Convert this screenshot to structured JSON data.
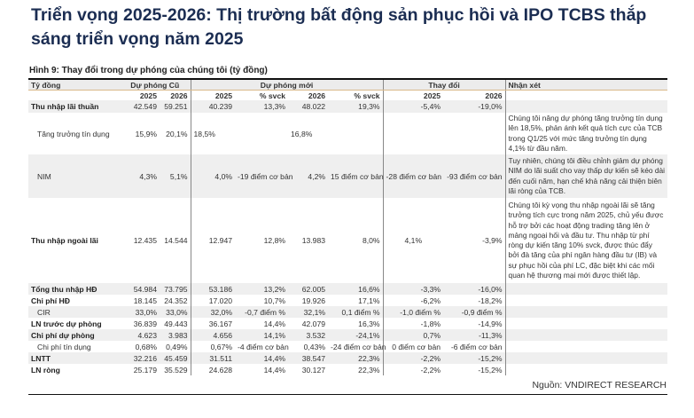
{
  "title": "Triển vọng 2025-2026: Thị trường bất động sản phục hồi và IPO TCBS thắp sáng triển vọng năm 2025",
  "caption": "Hình 9: Thay đổi trong dự phóng của chúng tôi (tỷ đồng)",
  "header": {
    "unit": "Tỷ đồng",
    "old": "Dự phóng Cũ",
    "new": "Dự phóng mới",
    "change": "Thay đổi",
    "comment": "Nhận xét",
    "sub": [
      "2025",
      "2026",
      "2025",
      "% svck",
      "2026",
      "% svck",
      "2025",
      "2026"
    ]
  },
  "rows": [
    {
      "label": "Thu nhập lãi thuần",
      "bold": true,
      "shaded": true,
      "cells": [
        "42.549",
        "59.251",
        "40.239",
        "13,3%",
        "48.022",
        "19,3%",
        "-5,4%",
        "-19,0%"
      ],
      "comment": ""
    },
    {
      "label": "Tăng trưởng tín dụng",
      "bold": false,
      "shaded": false,
      "cells": [
        "15,9%",
        "20,1%",
        "18,5%",
        "",
        "16,8%",
        "",
        "",
        ""
      ],
      "comment": "Chúng tôi nâng dự phóng tăng trưởng tín dụng lên 18,5%, phản ánh kết quả tích cực của TCB trong Q1/25 với mức tăng trưởng tín dụng 4,1% từ đầu năm."
    },
    {
      "label": "NIM",
      "bold": false,
      "shaded": true,
      "cells": [
        "4,3%",
        "5,1%",
        "4,0%",
        "-19 điểm cơ bản",
        "4,2%",
        "15 điểm cơ bản",
        "-28 điểm cơ bản",
        "-93 điểm cơ bản"
      ],
      "comment": "Tuy nhiên, chúng tôi điều chỉnh giảm dự phóng NIM do lãi suất cho vay thấp dự kiến sẽ kéo dài đến cuối năm, hạn chế khả năng cải thiện biên lãi ròng của TCB."
    },
    {
      "label": "Thu nhập ngoài lãi",
      "bold": true,
      "shaded": false,
      "cells": [
        "12.435",
        "14.544",
        "12.947",
        "12,8%",
        "13.983",
        "8,0%",
        "4,1%",
        "-3,9%"
      ],
      "comment": "Chúng tôi kỳ vọng thu nhập ngoài lãi sẽ tăng trưởng tích cực trong năm 2025, chủ yếu được hỗ trợ bởi các hoạt động trading tăng lên ở mảng ngoại hối và đầu tư. Thu nhập từ phí ròng dự kiến tăng 10% svck, được thúc đẩy bởi đà tăng của phí ngân hàng đầu tư (IB) và sự phục hồi của phí LC, đặc biệt khi các mối quan hệ thương mại mới được thiết lập."
    },
    {
      "label": "Tổng thu nhập HĐ",
      "bold": true,
      "shaded": true,
      "cells": [
        "54.984",
        "73.795",
        "53.186",
        "13,2%",
        "62.005",
        "16,6%",
        "-3,3%",
        "-16,0%"
      ],
      "comment": ""
    },
    {
      "label": "Chi phí HĐ",
      "bold": true,
      "shaded": false,
      "cells": [
        "18.145",
        "24.352",
        "17.020",
        "10,7%",
        "19.926",
        "17,1%",
        "-6,2%",
        "-18,2%"
      ],
      "comment": ""
    },
    {
      "label": "CIR",
      "bold": false,
      "shaded": true,
      "cells": [
        "33,0%",
        "33,0%",
        "32,0%",
        "-0,7 điểm %",
        "32,1%",
        "0,1 điểm %",
        "-1,0 điểm %",
        "-0,9 điểm %"
      ],
      "comment": ""
    },
    {
      "label": "LN trước dự phòng",
      "bold": true,
      "shaded": false,
      "cells": [
        "36.839",
        "49.443",
        "36.167",
        "14,4%",
        "42.079",
        "16,3%",
        "-1,8%",
        "-14,9%"
      ],
      "comment": ""
    },
    {
      "label": "Chi phí dự phòng",
      "bold": true,
      "shaded": true,
      "cells": [
        "4.623",
        "3.983",
        "4.656",
        "14,1%",
        "3.532",
        "-24,1%",
        "0,7%",
        "-11,3%"
      ],
      "comment": ""
    },
    {
      "label": "Chi phí tín dụng",
      "bold": false,
      "shaded": false,
      "cells": [
        "0,68%",
        "0,49%",
        "0,67%",
        "-4 điểm cơ bản",
        "0,43%",
        "-24 điểm cơ bản",
        "0 điểm cơ bản",
        "-6 điểm cơ bản"
      ],
      "comment": ""
    },
    {
      "label": "LNTT",
      "bold": true,
      "shaded": true,
      "cells": [
        "32.216",
        "45.459",
        "31.511",
        "14,4%",
        "38.547",
        "22,3%",
        "-2,2%",
        "-15,2%"
      ],
      "comment": ""
    },
    {
      "label": "LN ròng",
      "bold": true,
      "shaded": false,
      "cells": [
        "25.179",
        "35.529",
        "24.628",
        "14,4%",
        "30.127",
        "22,3%",
        "-2,2%",
        "-15,2%"
      ],
      "comment": ""
    }
  ],
  "source": "Nguồn: VNDIRECT RESEARCH"
}
